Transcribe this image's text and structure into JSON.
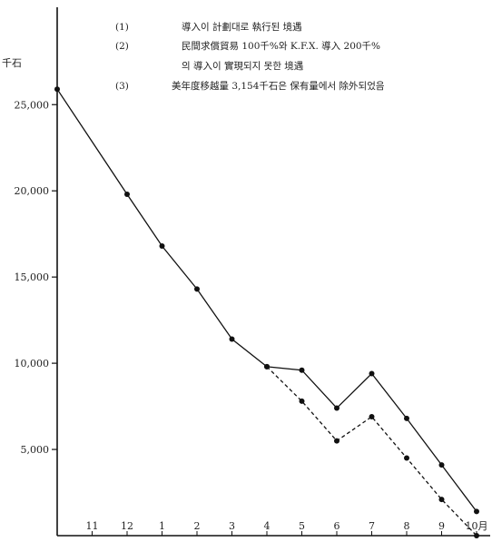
{
  "chart_data": {
    "type": "line",
    "ylabel": "千石",
    "ylim": [
      0,
      26000
    ],
    "yticks": [
      5000,
      10000,
      15000,
      20000,
      25000
    ],
    "ytick_labels": [
      "5,000",
      "10,000",
      "15,000",
      "20,000",
      "25,000"
    ],
    "categories": [
      "10",
      "11",
      "12",
      "1",
      "2",
      "3",
      "4",
      "5",
      "6",
      "7",
      "8",
      "9",
      "10月"
    ],
    "category_labels": [
      "",
      "11",
      "12",
      "1",
      "2",
      "3",
      "4",
      "5",
      "6",
      "7",
      "8",
      "9",
      "10月"
    ],
    "legend_title": "",
    "notes": [
      {
        "marker": "(1)",
        "text": "導入이 計劃대로 執行된 境遇"
      },
      {
        "marker": "(2)",
        "text": "民間求償貿易 100千%와 K.F.X. 導入 200千%"
      },
      {
        "marker": "",
        "text": "의 導入이 實現되지 못한 境遇"
      },
      {
        "marker": "(3)",
        "text": "美年度移越量 3,154千石은 保有量에서 除外되었음"
      }
    ],
    "series": [
      {
        "style": "solid",
        "values": [
          25900,
          null,
          19800,
          16800,
          14300,
          11400,
          9800,
          9600,
          7400,
          9400,
          6800,
          4100,
          1400
        ]
      },
      {
        "style": "dashed",
        "values": [
          null,
          null,
          null,
          null,
          null,
          null,
          9800,
          7800,
          5500,
          6900,
          4500,
          2100,
          0
        ]
      }
    ],
    "colors": {
      "line": "#111111",
      "axis": "#111111"
    }
  }
}
